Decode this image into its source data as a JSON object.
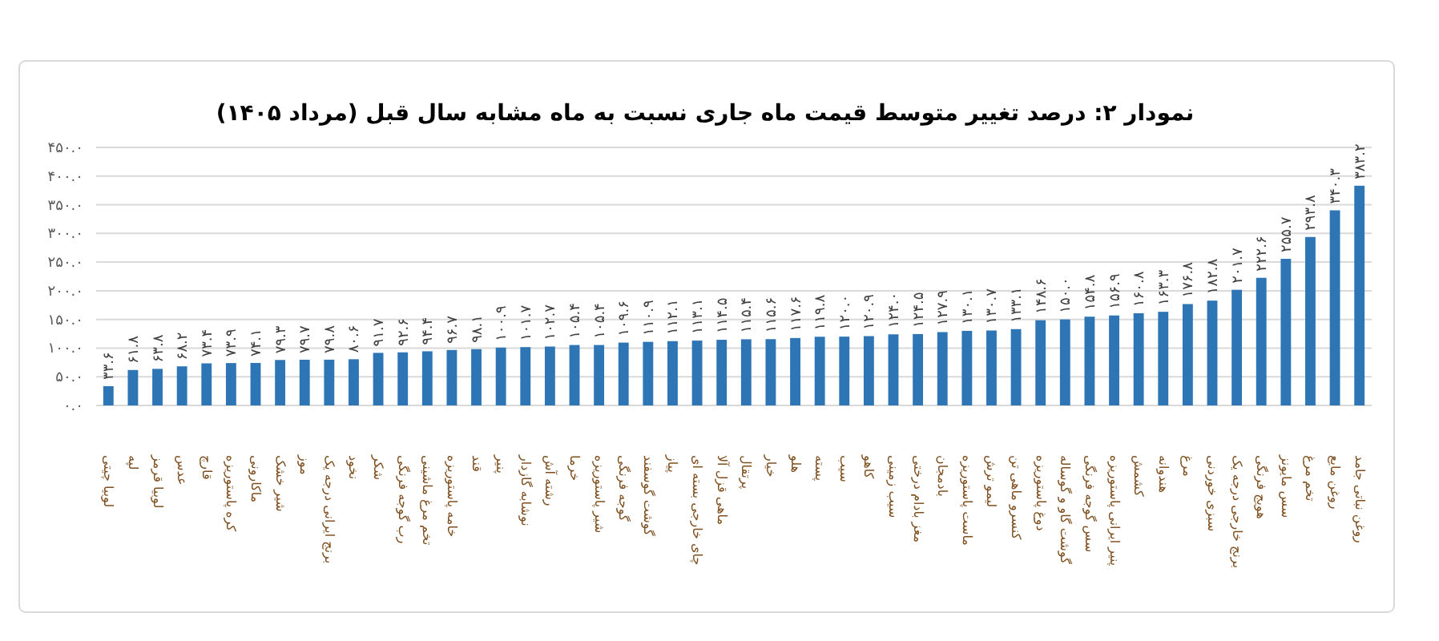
{
  "chart_data": {
    "type": "bar",
    "title": "نمودار ۲: درصد تغییر متوسط قیمت ماه جاری نسبت به ماه مشابه سال قبل (مرداد ۱۴۰۵)",
    "categories": [
      "لوبیا چیتی",
      "لپه",
      "لوبیا قرمز",
      "عدس",
      "قارچ",
      "کره پاستوریزه",
      "ماکارونی",
      "شیر خشک",
      "موز",
      "برنج ایرانی درجه یک",
      "نخود",
      "شکر",
      "رب گوجه فرنگی",
      "تخم مرغ ماشینی",
      "خامه پاستوریزه",
      "قند",
      "پنیر",
      "نوشابه گازدار",
      "رشته آش",
      "خرما",
      "شیر پاستوریزه",
      "گوجه فرنگی",
      "گوشت گوسفند",
      "پیاز",
      "چای خارجی بسته ای",
      "ماهی قزل آلا",
      "پرتقال",
      "خیار",
      "هلو",
      "پسته",
      "سیب",
      "کاهو",
      "سیب زمینی",
      "مغز بادام درختی",
      "بادمجان",
      "ماست پاستوریزه",
      "لیمو ترش",
      "کنسرو ماهی تن",
      "دوغ پاستوریزه",
      "گوشت گاو و گوساله",
      "سس گوجه فرنگی",
      "پنیر ایرانی پاستوریزه",
      "کشمش",
      "هندوانه",
      "مرغ",
      "سبزی خوردنی",
      "برنج خارجی درجه یک",
      "هویج فرنگی",
      "سس مایونز",
      "تخم مرغ",
      "روغن مایع",
      "روغن نباتی جامد"
    ],
    "values": [
      33.6,
      61.8,
      63.8,
      68.2,
      73.4,
      73.9,
      74.1,
      79.3,
      79.7,
      79.8,
      80.6,
      91.7,
      92.6,
      94.4,
      96.7,
      98.1,
      100.9,
      101.7,
      102.7,
      105.4,
      105.4,
      109.6,
      110.9,
      112.1,
      113.1,
      114.5,
      115.4,
      115.6,
      117.6,
      119.8,
      120.0,
      120.9,
      124.0,
      124.5,
      127.9,
      130.1,
      130.7,
      133.1,
      148.6,
      150.0,
      154.8,
      156.9,
      160.8,
      163.3,
      176.8,
      182.8,
      201.7,
      222.6,
      255.7,
      293.8,
      340.3,
      383.2
    ],
    "value_labels": [
      "۳۳.۶",
      "۶۱.۸",
      "۶۳.۸",
      "۶۸.۲",
      "۷۳.۴",
      "۷۳.۹",
      "۷۴.۱",
      "۷۹.۳",
      "۷۹.۷",
      "۷۹.۸",
      "۸۰.۶",
      "۹۱.۷",
      "۹۲.۶",
      "۹۴.۴",
      "۹۶.۷",
      "۹۸.۱",
      "۱۰۰.۹",
      "۱۰۱.۷",
      "۱۰۲.۷",
      "۱۰۵.۴",
      "۱۰۵.۴",
      "۱۰۹.۶",
      "۱۱۰.۹",
      "۱۱۲.۱",
      "۱۱۳.۱",
      "۱۱۴.۵",
      "۱۱۵.۴",
      "۱۱۵.۶",
      "۱۱۷.۶",
      "۱۱۹.۸",
      "۱۲۰.۰",
      "۱۲۰.۹",
      "۱۲۴.۰",
      "۱۲۴.۵",
      "۱۲۷.۹",
      "۱۳۰.۱",
      "۱۳۰.۷",
      "۱۳۳.۱",
      "۱۴۸.۶",
      "۱۵۰.۰",
      "۱۵۴.۸",
      "۱۵۶.۹",
      "۱۶۰.۸",
      "۱۶۳.۳",
      "۱۷۶.۸",
      "۱۸۲.۸",
      "۲۰۱.۷",
      "۲۲۲.۶",
      "۲۵۵.۷",
      "۲۹۳.۸",
      "۳۴۰.۳",
      "۳۸۳.۲"
    ],
    "color": "#2e75b6",
    "ylim": [
      0,
      450
    ],
    "yticks": [
      {
        "value": 0,
        "label": "۰.۰"
      },
      {
        "value": 50,
        "label": "۵۰.۰"
      },
      {
        "value": 100,
        "label": "۱۰۰.۰"
      },
      {
        "value": 150,
        "label": "۱۵۰.۰"
      },
      {
        "value": 200,
        "label": "۲۰۰.۰"
      },
      {
        "value": 250,
        "label": "۲۵۰.۰"
      },
      {
        "value": 300,
        "label": "۳۰۰.۰"
      },
      {
        "value": 350,
        "label": "۳۵۰.۰"
      },
      {
        "value": 400,
        "label": "۴۰۰.۰"
      },
      {
        "value": 450,
        "label": "۴۵۰.۰"
      }
    ],
    "grid": "y"
  }
}
